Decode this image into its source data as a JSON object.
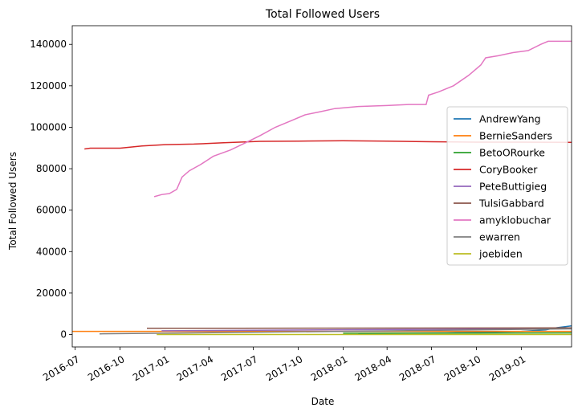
{
  "chart_data": {
    "type": "line",
    "title": "Total Followed Users",
    "xlabel": "Date",
    "ylabel": "Total Followed Users",
    "xlim": [
      "2016-06-25",
      "2019-04-14"
    ],
    "ylim": [
      -6000,
      149000
    ],
    "x_ticks": [
      "2016-07",
      "2016-10",
      "2017-01",
      "2017-04",
      "2017-07",
      "2017-10",
      "2018-01",
      "2018-04",
      "2018-07",
      "2018-10",
      "2019-01"
    ],
    "y_ticks": [
      0,
      20000,
      40000,
      60000,
      80000,
      100000,
      120000,
      140000
    ],
    "grid": false,
    "legend_position": "center-right",
    "series": [
      {
        "name": "AndrewYang",
        "color": "#1f77b4",
        "points": [
          [
            "2018-02-01",
            500
          ],
          [
            "2018-08-01",
            800
          ],
          [
            "2019-01-01",
            1500
          ],
          [
            "2019-02-20",
            2200
          ],
          [
            "2019-03-15",
            3300
          ],
          [
            "2019-04-14",
            4200
          ]
        ]
      },
      {
        "name": "BernieSanders",
        "color": "#ff7f0e",
        "points": [
          [
            "2016-06-25",
            1500
          ],
          [
            "2017-06-01",
            1500
          ],
          [
            "2018-06-01",
            1500
          ],
          [
            "2019-04-14",
            1500
          ]
        ]
      },
      {
        "name": "BetoORourke",
        "color": "#2ca02c",
        "points": [
          [
            "2018-01-01",
            600
          ],
          [
            "2018-10-01",
            700
          ],
          [
            "2019-04-14",
            800
          ]
        ]
      },
      {
        "name": "CoryBooker",
        "color": "#d62728",
        "points": [
          [
            "2016-07-20",
            89500
          ],
          [
            "2016-08-01",
            89900
          ],
          [
            "2016-10-01",
            89900
          ],
          [
            "2016-11-15",
            91000
          ],
          [
            "2017-01-01",
            91600
          ],
          [
            "2017-03-01",
            91900
          ],
          [
            "2017-05-01",
            92500
          ],
          [
            "2017-07-15",
            93200
          ],
          [
            "2017-10-01",
            93300
          ],
          [
            "2018-01-01",
            93500
          ],
          [
            "2018-04-01",
            93300
          ],
          [
            "2018-07-01",
            93000
          ],
          [
            "2018-10-01",
            92800
          ],
          [
            "2019-01-01",
            92800
          ],
          [
            "2019-04-14",
            92700
          ]
        ]
      },
      {
        "name": "PeteButtigieg",
        "color": "#9467bd",
        "points": [
          [
            "2016-12-25",
            1800
          ],
          [
            "2017-06-01",
            2000
          ],
          [
            "2018-01-01",
            2300
          ],
          [
            "2018-07-01",
            2500
          ],
          [
            "2019-01-01",
            2800
          ],
          [
            "2019-04-14",
            3000
          ]
        ]
      },
      {
        "name": "TulsiGabbard",
        "color": "#8c564b",
        "points": [
          [
            "2016-11-25",
            3000
          ],
          [
            "2017-06-01",
            3000
          ],
          [
            "2018-06-01",
            3100
          ],
          [
            "2019-04-14",
            3200
          ]
        ]
      },
      {
        "name": "amyklobuchar",
        "color": "#e377c2",
        "points": [
          [
            "2016-12-10",
            66500
          ],
          [
            "2016-12-25",
            67500
          ],
          [
            "2017-01-10",
            68000
          ],
          [
            "2017-01-25",
            70000
          ],
          [
            "2017-02-05",
            76000
          ],
          [
            "2017-02-20",
            79000
          ],
          [
            "2017-03-15",
            82000
          ],
          [
            "2017-04-10",
            86000
          ],
          [
            "2017-05-15",
            89000
          ],
          [
            "2017-06-15",
            92500
          ],
          [
            "2017-07-15",
            96000
          ],
          [
            "2017-08-15",
            100000
          ],
          [
            "2017-09-15",
            103000
          ],
          [
            "2017-10-15",
            106000
          ],
          [
            "2017-11-15",
            107500
          ],
          [
            "2017-12-15",
            109000
          ],
          [
            "2018-02-01",
            110000
          ],
          [
            "2018-04-01",
            110500
          ],
          [
            "2018-05-15",
            111000
          ],
          [
            "2018-06-20",
            111000
          ],
          [
            "2018-06-25",
            115500
          ],
          [
            "2018-07-15",
            117000
          ],
          [
            "2018-08-15",
            120000
          ],
          [
            "2018-09-15",
            125000
          ],
          [
            "2018-10-10",
            130000
          ],
          [
            "2018-10-20",
            133500
          ],
          [
            "2018-11-15",
            134500
          ],
          [
            "2018-12-15",
            136000
          ],
          [
            "2019-01-15",
            137000
          ],
          [
            "2019-02-10",
            140000
          ],
          [
            "2019-02-25",
            141500
          ],
          [
            "2019-04-14",
            141500
          ]
        ]
      },
      {
        "name": "ewarren",
        "color": "#7f7f7f",
        "points": [
          [
            "2016-08-20",
            300
          ],
          [
            "2017-06-01",
            1000
          ],
          [
            "2018-01-01",
            1500
          ],
          [
            "2018-07-01",
            2000
          ],
          [
            "2019-01-01",
            2500
          ],
          [
            "2019-04-14",
            2700
          ]
        ]
      },
      {
        "name": "joebiden",
        "color": "#bcbd22",
        "points": [
          [
            "2016-12-15",
            0
          ],
          [
            "2017-06-01",
            0
          ],
          [
            "2018-06-01",
            0
          ],
          [
            "2019-04-14",
            0
          ]
        ]
      }
    ]
  }
}
